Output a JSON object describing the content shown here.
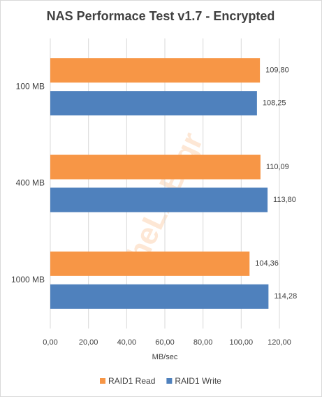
{
  "chart_data": {
    "type": "hbar",
    "title": "NAS Performace Test v1.7 - Encrypted",
    "watermark": "theLAB.gr",
    "categories": [
      "100 MB",
      "400 MB",
      "1000 MB"
    ],
    "series": [
      {
        "name": "RAID1 Read",
        "color": "#f79646",
        "values": [
          109.8,
          110.09,
          104.36
        ],
        "value_labels": [
          "109,80",
          "110,09",
          "104,36"
        ]
      },
      {
        "name": "RAID1 Write",
        "color": "#4f81bd",
        "values": [
          108.25,
          113.8,
          114.28
        ],
        "value_labels": [
          "108,25",
          "113,80",
          "114,28"
        ]
      }
    ],
    "xlabel": "MB/sec",
    "xlim": [
      0,
      120
    ],
    "xticks": [
      {
        "value": 0,
        "label": "0,00"
      },
      {
        "value": 20,
        "label": "20,00"
      },
      {
        "value": 40,
        "label": "40,00"
      },
      {
        "value": 60,
        "label": "60,00"
      },
      {
        "value": 80,
        "label": "80,00"
      },
      {
        "value": 100,
        "label": "100,00"
      },
      {
        "value": 120,
        "label": "120,00"
      }
    ],
    "grid": true,
    "legend": "bottom"
  }
}
